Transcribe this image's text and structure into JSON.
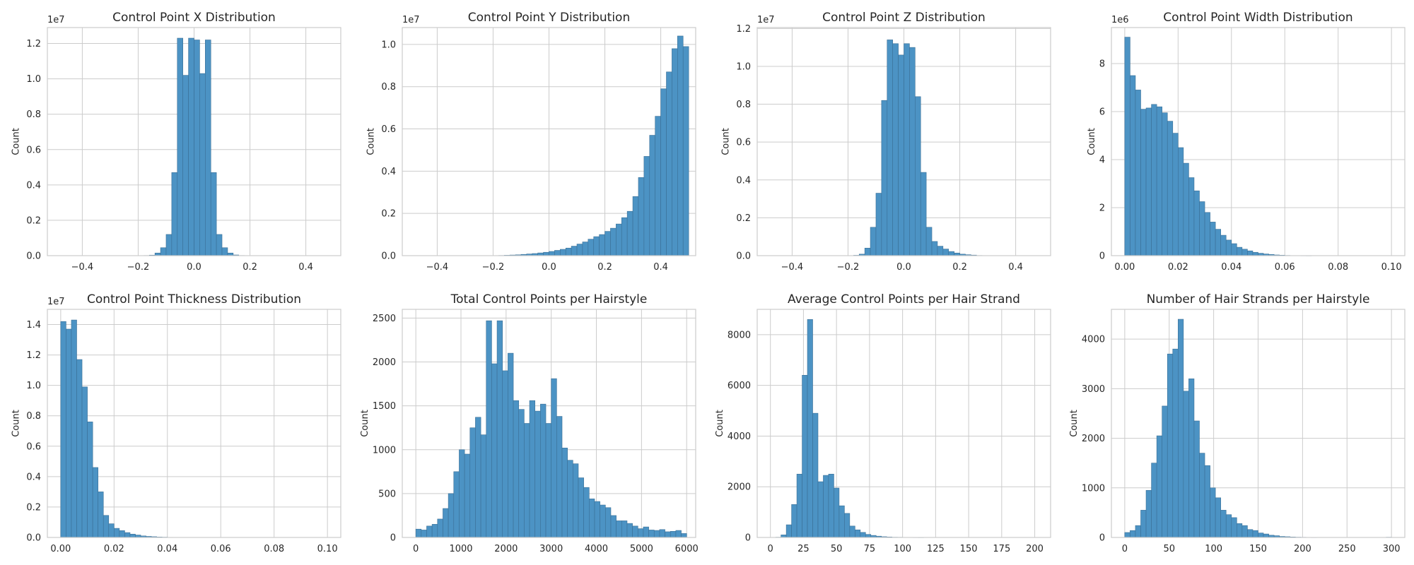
{
  "figure": {
    "bar_color": "#4c93c4",
    "bar_edge": "#3a6f96",
    "grid_color": "#cccccc",
    "frame_color": "#cccccc"
  },
  "chart_data": [
    {
      "type": "bar",
      "title": "Control Point X Distribution",
      "xlabel": "",
      "ylabel": "Count",
      "multiplier": "1e7",
      "xlim": [
        -0.525,
        0.525
      ],
      "ylim": [
        0,
        1.29
      ],
      "xticks": [
        -0.4,
        -0.2,
        0.0,
        0.2,
        0.4
      ],
      "xtick_labels": [
        "−0.4",
        "−0.2",
        "0.0",
        "0.2",
        "0.4"
      ],
      "yticks": [
        0,
        0.2,
        0.4,
        0.6,
        0.8,
        1.0,
        1.2
      ],
      "ytick_labels": [
        "0.0",
        "0.2",
        "0.4",
        "0.6",
        "0.8",
        "1.0",
        "1.2"
      ],
      "bin_start": -0.5,
      "bin_width": 0.02,
      "values": [
        0,
        0,
        0,
        0,
        0,
        0,
        0,
        0,
        0,
        0,
        0,
        0,
        0,
        0,
        0,
        0,
        0.001,
        0.003,
        0.015,
        0.045,
        0.12,
        0.47,
        1.23,
        1.02,
        1.23,
        1.22,
        1.03,
        1.22,
        0.47,
        0.12,
        0.045,
        0.015,
        0.004,
        0.001,
        0,
        0,
        0,
        0,
        0,
        0,
        0,
        0,
        0,
        0,
        0,
        0,
        0,
        0,
        0,
        0
      ]
    },
    {
      "type": "bar",
      "title": "Control Point Y Distribution",
      "xlabel": "",
      "ylabel": "Count",
      "multiplier": "1e7",
      "xlim": [
        -0.525,
        0.525
      ],
      "ylim": [
        0,
        1.08
      ],
      "xticks": [
        -0.4,
        -0.2,
        0.0,
        0.2,
        0.4
      ],
      "xtick_labels": [
        "−0.4",
        "−0.2",
        "0.0",
        "0.2",
        "0.4"
      ],
      "yticks": [
        0,
        0.2,
        0.4,
        0.6,
        0.8,
        1.0
      ],
      "ytick_labels": [
        "0.0",
        "0.2",
        "0.4",
        "0.6",
        "0.8",
        "1.0"
      ],
      "bin_start": -0.5,
      "bin_width": 0.02,
      "values": [
        0,
        0,
        0,
        0,
        0,
        0,
        0,
        0,
        0,
        0,
        0,
        0,
        0,
        0,
        0,
        0,
        0.001,
        0.002,
        0.003,
        0.004,
        0.006,
        0.008,
        0.01,
        0.013,
        0.016,
        0.02,
        0.025,
        0.03,
        0.036,
        0.045,
        0.055,
        0.065,
        0.078,
        0.09,
        0.1,
        0.115,
        0.13,
        0.15,
        0.18,
        0.21,
        0.28,
        0.37,
        0.47,
        0.57,
        0.66,
        0.79,
        0.87,
        0.98,
        1.04,
        0.99
      ]
    },
    {
      "type": "bar",
      "title": "Control Point Z Distribution",
      "xlabel": "",
      "ylabel": "Count",
      "multiplier": "1e7",
      "xlim": [
        -0.525,
        0.525
      ],
      "ylim": [
        0,
        1.205
      ],
      "xticks": [
        -0.4,
        -0.2,
        0.0,
        0.2,
        0.4
      ],
      "xtick_labels": [
        "−0.4",
        "−0.2",
        "0.0",
        "0.2",
        "0.4"
      ],
      "yticks": [
        0,
        0.2,
        0.4,
        0.6,
        0.8,
        1.0,
        1.2
      ],
      "ytick_labels": [
        "0.0",
        "0.2",
        "0.4",
        "0.6",
        "0.8",
        "1.0",
        "1.2"
      ],
      "bin_start": -0.5,
      "bin_width": 0.02,
      "values": [
        0,
        0,
        0,
        0,
        0,
        0,
        0,
        0,
        0,
        0,
        0,
        0,
        0,
        0,
        0,
        0,
        0.002,
        0.008,
        0.04,
        0.15,
        0.33,
        0.82,
        1.14,
        1.12,
        1.06,
        1.12,
        1.1,
        0.84,
        0.44,
        0.15,
        0.075,
        0.05,
        0.035,
        0.022,
        0.014,
        0.008,
        0.005,
        0.003,
        0.001,
        0,
        0,
        0,
        0,
        0,
        0,
        0,
        0,
        0,
        0,
        0
      ]
    },
    {
      "type": "bar",
      "title": "Control Point Width Distribution",
      "xlabel": "",
      "ylabel": "Count",
      "multiplier": "1e6",
      "xlim": [
        -0.005,
        0.105
      ],
      "ylim": [
        0,
        9.5
      ],
      "xticks": [
        0.0,
        0.02,
        0.04,
        0.06,
        0.08,
        0.1
      ],
      "xtick_labels": [
        "0.00",
        "0.02",
        "0.04",
        "0.06",
        "0.08",
        "0.10"
      ],
      "yticks": [
        0,
        2,
        4,
        6,
        8
      ],
      "ytick_labels": [
        "0",
        "2",
        "4",
        "6",
        "8"
      ],
      "bin_start": 0.0,
      "bin_width": 0.002,
      "values": [
        9.1,
        7.5,
        6.9,
        6.1,
        6.15,
        6.3,
        6.2,
        5.95,
        5.6,
        5.1,
        4.5,
        3.85,
        3.25,
        2.7,
        2.25,
        1.8,
        1.4,
        1.1,
        0.85,
        0.65,
        0.5,
        0.35,
        0.27,
        0.2,
        0.14,
        0.1,
        0.07,
        0.05,
        0.03,
        0.02,
        0.01,
        0.005,
        0.003,
        0.002,
        0.001,
        0,
        0,
        0,
        0,
        0,
        0,
        0,
        0,
        0,
        0,
        0,
        0,
        0,
        0,
        0
      ]
    },
    {
      "type": "bar",
      "title": "Control Point Thickness Distribution",
      "xlabel": "",
      "ylabel": "Count",
      "multiplier": "1e7",
      "xlim": [
        -0.005,
        0.105
      ],
      "ylim": [
        0,
        1.5
      ],
      "xticks": [
        0.0,
        0.02,
        0.04,
        0.06,
        0.08,
        0.1
      ],
      "xtick_labels": [
        "0.00",
        "0.02",
        "0.04",
        "0.06",
        "0.08",
        "0.10"
      ],
      "yticks": [
        0,
        0.2,
        0.4,
        0.6,
        0.8,
        1.0,
        1.2,
        1.4
      ],
      "ytick_labels": [
        "0.0",
        "0.2",
        "0.4",
        "0.6",
        "0.8",
        "1.0",
        "1.2",
        "1.4"
      ],
      "bin_start": 0.0,
      "bin_width": 0.002,
      "values": [
        1.42,
        1.37,
        1.43,
        1.17,
        0.99,
        0.76,
        0.46,
        0.3,
        0.145,
        0.09,
        0.06,
        0.045,
        0.032,
        0.022,
        0.016,
        0.01,
        0.007,
        0.005,
        0.003,
        0.002,
        0.001,
        0,
        0,
        0,
        0,
        0,
        0,
        0,
        0,
        0,
        0,
        0,
        0,
        0,
        0,
        0,
        0,
        0,
        0,
        0,
        0,
        0,
        0,
        0,
        0,
        0,
        0,
        0,
        0,
        0
      ]
    },
    {
      "type": "bar",
      "title": "Total Control Points per Hairstyle",
      "xlabel": "",
      "ylabel": "Count",
      "multiplier": "",
      "xlim": [
        -300,
        6200
      ],
      "ylim": [
        0,
        2600
      ],
      "xticks": [
        0,
        1000,
        2000,
        3000,
        4000,
        5000,
        6000
      ],
      "xtick_labels": [
        "0",
        "1000",
        "2000",
        "3000",
        "4000",
        "5000",
        "6000"
      ],
      "yticks": [
        0,
        500,
        1000,
        1500,
        2000,
        2500
      ],
      "ytick_labels": [
        "0",
        "500",
        "1000",
        "1500",
        "2000",
        "2500"
      ],
      "bin_start": 0,
      "bin_width": 120,
      "values": [
        95,
        85,
        130,
        150,
        210,
        330,
        500,
        750,
        1000,
        950,
        1250,
        1370,
        1170,
        2470,
        1980,
        2470,
        1900,
        2100,
        1560,
        1460,
        1300,
        1560,
        1440,
        1520,
        1300,
        1810,
        1380,
        1020,
        880,
        840,
        680,
        570,
        440,
        410,
        370,
        340,
        250,
        190,
        190,
        160,
        130,
        100,
        120,
        85,
        80,
        90,
        65,
        70,
        80,
        45
      ]
    },
    {
      "type": "bar",
      "title": "Average Control Points per Hair Strand",
      "xlabel": "",
      "ylabel": "Count",
      "multiplier": "",
      "xlim": [
        -10,
        212
      ],
      "ylim": [
        0,
        9000
      ],
      "xticks": [
        0,
        25,
        50,
        75,
        100,
        125,
        150,
        175,
        200
      ],
      "xtick_labels": [
        "0",
        "25",
        "50",
        "75",
        "100",
        "125",
        "150",
        "175",
        "200"
      ],
      "yticks": [
        0,
        2000,
        4000,
        6000,
        8000
      ],
      "ytick_labels": [
        "0",
        "2000",
        "4000",
        "6000",
        "8000"
      ],
      "bin_start": 0,
      "bin_width": 4,
      "values": [
        0,
        10,
        100,
        500,
        1300,
        2500,
        6400,
        8600,
        4900,
        2200,
        2450,
        2500,
        1950,
        1250,
        950,
        450,
        300,
        200,
        120,
        80,
        50,
        30,
        20,
        10,
        8,
        5,
        3,
        2,
        1,
        0,
        0,
        0,
        0,
        0,
        0,
        0,
        0,
        0,
        0,
        0,
        0,
        0,
        0,
        0,
        0,
        0,
        0,
        0,
        0,
        0
      ]
    },
    {
      "type": "bar",
      "title": "Number of Hair Strands per Hairstyle",
      "xlabel": "",
      "ylabel": "Count",
      "multiplier": "",
      "xlim": [
        -15,
        315
      ],
      "ylim": [
        0,
        4600
      ],
      "xticks": [
        0,
        50,
        100,
        150,
        200,
        250,
        300
      ],
      "xtick_labels": [
        "0",
        "50",
        "100",
        "150",
        "200",
        "250",
        "300"
      ],
      "yticks": [
        0,
        1000,
        2000,
        3000,
        4000
      ],
      "ytick_labels": [
        "0",
        "1000",
        "2000",
        "3000",
        "4000"
      ],
      "bin_start": 0,
      "bin_width": 6,
      "values": [
        100,
        140,
        240,
        550,
        950,
        1500,
        2050,
        2650,
        3700,
        3800,
        4400,
        2950,
        3200,
        2350,
        1700,
        1450,
        1000,
        800,
        550,
        460,
        400,
        280,
        240,
        160,
        140,
        90,
        70,
        45,
        35,
        20,
        15,
        10,
        6,
        4,
        2,
        1,
        0,
        0,
        0,
        0,
        0,
        0,
        0,
        0,
        0,
        0,
        0,
        0,
        0,
        5
      ]
    }
  ]
}
